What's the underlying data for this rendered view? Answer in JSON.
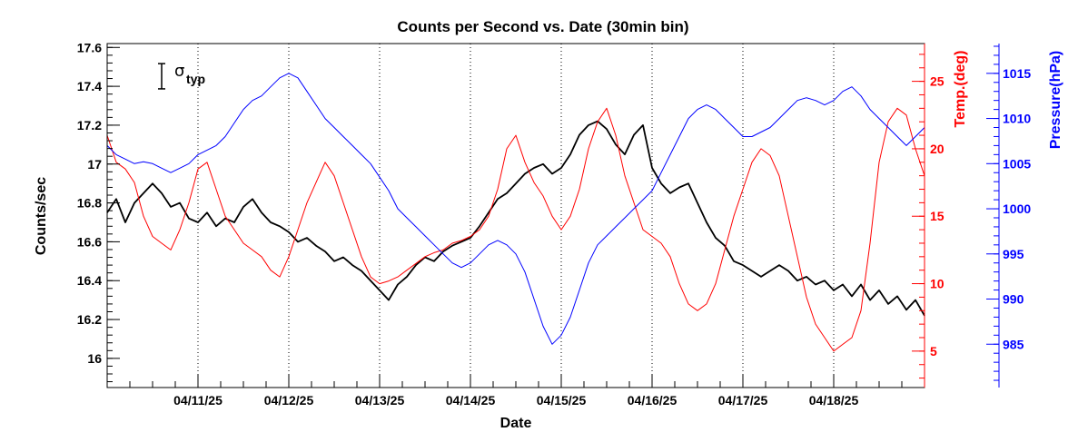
{
  "chart_data": {
    "type": "line",
    "title": "Counts per Second vs. Date (30min bin)",
    "xlabel": "Date",
    "xlim": [
      "2025-04-10T00:00",
      "2025-04-19T00:00"
    ],
    "x_tick_labels": [
      "04/11/25",
      "04/12/25",
      "04/13/25",
      "04/14/25",
      "04/15/25",
      "04/16/25",
      "04/17/25",
      "04/18/25"
    ],
    "grid": {
      "x_dotted": true,
      "y": false
    },
    "axes": {
      "counts": {
        "label": "Counts/sec",
        "side": "left",
        "ylim": [
          15.85,
          17.62
        ],
        "ticks": [
          "16",
          "16.2",
          "16.4",
          "16.6",
          "16.8",
          "17",
          "17.2",
          "17.4",
          "17.6"
        ],
        "color": "#000000"
      },
      "temp": {
        "label": "Temp.(deg)",
        "side": "right",
        "ylim": [
          2.3,
          27.8
        ],
        "ticks": [
          "5",
          "10",
          "15",
          "20",
          "25"
        ],
        "color": "#ff0000"
      },
      "pressure": {
        "label": "Pressure(hPa)",
        "side": "right-outer",
        "ylim": [
          980.2,
          1018.3
        ],
        "ticks": [
          "985",
          "990",
          "995",
          "1000",
          "1005",
          "1010",
          "1015"
        ],
        "color": "#0000ff"
      }
    },
    "annotation": {
      "symbol": "σ",
      "subscript": "typ",
      "sigma_size_counts": 0.13
    },
    "series": [
      {
        "axis": "counts",
        "color": "#000000",
        "x": [
          0,
          0.1,
          0.2,
          0.3,
          0.4,
          0.5,
          0.6,
          0.7,
          0.8,
          0.9,
          1.0,
          1.1,
          1.2,
          1.3,
          1.4,
          1.5,
          1.6,
          1.7,
          1.8,
          1.9,
          2.0,
          2.1,
          2.2,
          2.3,
          2.4,
          2.5,
          2.6,
          2.7,
          2.8,
          2.9,
          3.0,
          3.1,
          3.2,
          3.3,
          3.4,
          3.5,
          3.6,
          3.7,
          3.8,
          3.9,
          4.0,
          4.1,
          4.2,
          4.3,
          4.4,
          4.5,
          4.6,
          4.7,
          4.8,
          4.9,
          5.0,
          5.1,
          5.2,
          5.3,
          5.4,
          5.5,
          5.6,
          5.7,
          5.8,
          5.9,
          6.0,
          6.1,
          6.2,
          6.3,
          6.4,
          6.5,
          6.6,
          6.7,
          6.8,
          6.9,
          7.0,
          7.1,
          7.2,
          7.3,
          7.4,
          7.5,
          7.6,
          7.7,
          7.8,
          7.9,
          8.0,
          8.1,
          8.2,
          8.3,
          8.4,
          8.5,
          8.6,
          8.7,
          8.8,
          8.9,
          9.0
        ],
        "y": [
          16.75,
          16.82,
          16.7,
          16.8,
          16.85,
          16.9,
          16.85,
          16.78,
          16.8,
          16.72,
          16.7,
          16.75,
          16.68,
          16.72,
          16.7,
          16.78,
          16.82,
          16.75,
          16.7,
          16.68,
          16.65,
          16.6,
          16.62,
          16.58,
          16.55,
          16.5,
          16.52,
          16.48,
          16.45,
          16.4,
          16.35,
          16.3,
          16.38,
          16.42,
          16.48,
          16.52,
          16.5,
          16.55,
          16.58,
          16.6,
          16.62,
          16.68,
          16.75,
          16.82,
          16.85,
          16.9,
          16.95,
          16.98,
          17.0,
          16.95,
          16.98,
          17.05,
          17.15,
          17.2,
          17.22,
          17.18,
          17.1,
          17.05,
          17.15,
          17.2,
          16.98,
          16.9,
          16.85,
          16.88,
          16.9,
          16.8,
          16.7,
          16.62,
          16.58,
          16.5,
          16.48,
          16.45,
          16.42,
          16.45,
          16.48,
          16.45,
          16.4,
          16.42,
          16.38,
          16.4,
          16.35,
          16.38,
          16.32,
          16.38,
          16.3,
          16.35,
          16.28,
          16.32,
          16.25,
          16.3,
          16.22
        ]
      },
      {
        "axis": "temp",
        "color": "#ff0000",
        "x": [
          0,
          0.1,
          0.2,
          0.3,
          0.4,
          0.5,
          0.6,
          0.7,
          0.8,
          0.9,
          1.0,
          1.1,
          1.2,
          1.3,
          1.4,
          1.5,
          1.6,
          1.7,
          1.8,
          1.9,
          2.0,
          2.1,
          2.2,
          2.3,
          2.4,
          2.5,
          2.6,
          2.7,
          2.8,
          2.9,
          3.0,
          3.1,
          3.2,
          3.3,
          3.4,
          3.5,
          3.6,
          3.7,
          3.8,
          3.9,
          4.0,
          4.1,
          4.2,
          4.3,
          4.4,
          4.5,
          4.6,
          4.7,
          4.8,
          4.9,
          5.0,
          5.1,
          5.2,
          5.3,
          5.4,
          5.5,
          5.6,
          5.7,
          5.8,
          5.9,
          6.0,
          6.1,
          6.2,
          6.3,
          6.4,
          6.5,
          6.6,
          6.7,
          6.8,
          6.9,
          7.0,
          7.1,
          7.2,
          7.3,
          7.4,
          7.5,
          7.6,
          7.7,
          7.8,
          7.9,
          8.0,
          8.1,
          8.2,
          8.3,
          8.4,
          8.5,
          8.6,
          8.7,
          8.8,
          8.9,
          9.0
        ],
        "y": [
          21,
          19,
          18.5,
          17.5,
          15,
          13.5,
          13,
          12.5,
          14,
          16,
          18.5,
          19,
          17,
          15,
          14,
          13,
          12.5,
          12,
          11,
          10.5,
          12,
          14,
          16,
          17.5,
          19,
          18,
          16,
          14,
          12,
          10.5,
          10,
          10.2,
          10.5,
          11,
          11.5,
          12,
          12.3,
          12.5,
          13,
          13.2,
          13.5,
          14,
          15,
          17,
          20,
          21,
          19,
          17.5,
          16.5,
          15,
          14,
          15,
          17,
          20,
          22,
          23,
          21,
          18,
          16,
          14,
          13.5,
          13,
          12,
          10,
          8.5,
          8,
          8.5,
          10,
          12.5,
          15,
          17,
          19,
          20,
          19.5,
          18,
          15,
          12,
          9,
          7,
          6,
          5,
          5.5,
          6,
          8,
          13,
          19,
          22,
          23,
          22.5,
          20,
          18
        ]
      },
      {
        "axis": "pressure",
        "color": "#0000ff",
        "x": [
          0,
          0.1,
          0.2,
          0.3,
          0.4,
          0.5,
          0.6,
          0.7,
          0.8,
          0.9,
          1.0,
          1.1,
          1.2,
          1.3,
          1.4,
          1.5,
          1.6,
          1.7,
          1.8,
          1.9,
          2.0,
          2.1,
          2.2,
          2.3,
          2.4,
          2.5,
          2.6,
          2.7,
          2.8,
          2.9,
          3.0,
          3.1,
          3.2,
          3.3,
          3.4,
          3.5,
          3.6,
          3.7,
          3.8,
          3.9,
          4.0,
          4.1,
          4.2,
          4.3,
          4.4,
          4.5,
          4.6,
          4.7,
          4.8,
          4.9,
          5.0,
          5.1,
          5.2,
          5.3,
          5.4,
          5.5,
          5.6,
          5.7,
          5.8,
          5.9,
          6.0,
          6.1,
          6.2,
          6.3,
          6.4,
          6.5,
          6.6,
          6.7,
          6.8,
          6.9,
          7.0,
          7.1,
          7.2,
          7.3,
          7.4,
          7.5,
          7.6,
          7.7,
          7.8,
          7.9,
          8.0,
          8.1,
          8.2,
          8.3,
          8.4,
          8.5,
          8.6,
          8.7,
          8.8,
          8.9,
          9.0
        ],
        "y": [
          1007,
          1006,
          1005.5,
          1005,
          1005.2,
          1005,
          1004.5,
          1004,
          1004.5,
          1005,
          1006,
          1006.5,
          1007,
          1008,
          1009.5,
          1011,
          1012,
          1012.5,
          1013.5,
          1014.5,
          1015,
          1014.5,
          1013,
          1011.5,
          1010,
          1009,
          1008,
          1007,
          1006,
          1005,
          1003.5,
          1002,
          1000,
          999,
          998,
          997,
          996,
          995,
          994,
          993.5,
          994,
          995,
          996,
          996.5,
          996,
          995,
          993,
          990,
          987,
          985,
          986,
          988,
          991,
          994,
          996,
          997,
          998,
          999,
          1000,
          1001,
          1002,
          1004,
          1006,
          1008,
          1010,
          1011,
          1011.5,
          1011,
          1010,
          1009,
          1008,
          1008,
          1008.5,
          1009,
          1010,
          1011,
          1012,
          1012.3,
          1012,
          1011.5,
          1012,
          1013,
          1013.5,
          1012.5,
          1011,
          1010,
          1009,
          1008,
          1007,
          1008,
          1009
        ]
      }
    ]
  }
}
